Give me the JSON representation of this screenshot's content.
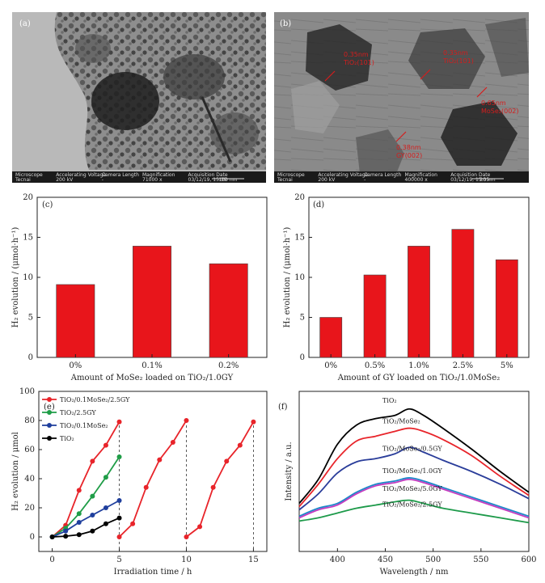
{
  "panels": {
    "a": {
      "label": "(a)"
    },
    "b": {
      "label": "(b)"
    },
    "c": {
      "label": "(c)"
    },
    "d": {
      "label": "(d)"
    },
    "e": {
      "label": "(e)"
    },
    "f": {
      "label": "(f)"
    }
  },
  "tem": {
    "a": {
      "bar_header": [
        "Microscope",
        "Accelerating Voltage",
        "Camera Length",
        "Magnification",
        "Acquisition Date"
      ],
      "bar_values": [
        "Tecnai",
        "200 kV",
        "-",
        "71000 x",
        "03/12/19, 15:35"
      ],
      "scale": "100 nm"
    },
    "b": {
      "bar_header": [
        "Microscope",
        "Accelerating Voltage",
        "Camera Length",
        "Magnification",
        "Acquisition Date"
      ],
      "bar_values": [
        "Tecnai",
        "200 kV",
        "-",
        "400000 x",
        "03/12/19, 15:35"
      ],
      "scale": "20 nm",
      "annotations": [
        {
          "line1": "0.35nm",
          "line2": "TiO₂(101)"
        },
        {
          "line1": "0.35nm",
          "line2": "TiO₂(101)"
        },
        {
          "line1": "0.65nm",
          "line2": "MoSe₂(002)"
        },
        {
          "line1": "0.38nm",
          "line2": "GY(002)"
        }
      ]
    }
  },
  "chart_data": [
    {
      "id": "c",
      "type": "bar",
      "categories": [
        "0%",
        "0.1%",
        "0.2%"
      ],
      "values": [
        9.1,
        13.9,
        11.7
      ],
      "xlabel": "Amount of MoSe₂ loaded on TiO₂/1.0GY",
      "ylabel": "H₂ evolution / (μmol·h⁻¹)",
      "ylim": [
        0,
        20
      ],
      "yticks": [
        0,
        5,
        10,
        15,
        20
      ],
      "color": "#e8151b"
    },
    {
      "id": "d",
      "type": "bar",
      "categories": [
        "0%",
        "0.5%",
        "1.0%",
        "2.5%",
        "5%"
      ],
      "values": [
        5.0,
        10.3,
        13.9,
        16.0,
        12.2
      ],
      "xlabel": "Amount of GY loaded on TiO₂/1.0MoSe₂",
      "ylabel": "H₂ evolution / (μmol·h⁻¹)",
      "ylim": [
        0,
        20
      ],
      "yticks": [
        0,
        5,
        10,
        15,
        20
      ],
      "color": "#e8151b"
    },
    {
      "id": "e",
      "type": "line",
      "xlabel": "Irradiation time / h",
      "ylabel": "H₂ evolution / μmol",
      "xlim": [
        -1,
        16
      ],
      "ylim": [
        -10,
        100
      ],
      "xticks": [
        0,
        5,
        10,
        15
      ],
      "yticks": [
        0,
        20,
        40,
        60,
        80,
        100
      ],
      "cycle_lines": [
        5,
        10,
        15
      ],
      "series": [
        {
          "name": "TiO₂/0.1MoSe₂/2.5GY",
          "color": "#e8242a",
          "segments": [
            [
              [
                0,
                0
              ],
              [
                1,
                8
              ],
              [
                2,
                32
              ],
              [
                3,
                52
              ],
              [
                4,
                63
              ],
              [
                5,
                79
              ]
            ],
            [
              [
                5,
                0
              ],
              [
                6,
                9
              ],
              [
                7,
                34
              ],
              [
                8,
                53
              ],
              [
                9,
                65
              ],
              [
                10,
                80
              ]
            ],
            [
              [
                10,
                0
              ],
              [
                11,
                7
              ],
              [
                12,
                34
              ],
              [
                13,
                52
              ],
              [
                14,
                63
              ],
              [
                15,
                79
              ]
            ]
          ]
        },
        {
          "name": "TiO₂/2.5GY",
          "color": "#1f9d47",
          "segments": [
            [
              [
                0,
                0
              ],
              [
                1,
                6
              ],
              [
                2,
                16
              ],
              [
                3,
                28
              ],
              [
                4,
                41
              ],
              [
                5,
                55
              ]
            ]
          ]
        },
        {
          "name": "TiO₂/0.1MoSe₂",
          "color": "#1f3f9d",
          "segments": [
            [
              [
                0,
                0
              ],
              [
                1,
                4
              ],
              [
                2,
                10
              ],
              [
                3,
                15
              ],
              [
                4,
                20
              ],
              [
                5,
                25
              ]
            ]
          ]
        },
        {
          "name": "TiO₂",
          "color": "#000000",
          "segments": [
            [
              [
                0,
                0
              ],
              [
                1,
                0.5
              ],
              [
                2,
                1.5
              ],
              [
                3,
                4
              ],
              [
                4,
                9
              ],
              [
                5,
                13
              ]
            ]
          ]
        }
      ]
    },
    {
      "id": "f",
      "type": "line",
      "xlabel": "Wavelength / nm",
      "ylabel": "Intensity / a.u.",
      "xlim": [
        360,
        600
      ],
      "ylim": [
        0,
        1
      ],
      "xticks": [
        400,
        450,
        500,
        550,
        600
      ],
      "series": [
        {
          "name": "TiO₂",
          "color": "#000000",
          "points": [
            [
              360,
              0.3
            ],
            [
              380,
              0.45
            ],
            [
              400,
              0.67
            ],
            [
              420,
              0.79
            ],
            [
              440,
              0.83
            ],
            [
              460,
              0.85
            ],
            [
              475,
              0.89
            ],
            [
              490,
              0.85
            ],
            [
              510,
              0.77
            ],
            [
              540,
              0.64
            ],
            [
              570,
              0.5
            ],
            [
              600,
              0.37
            ]
          ]
        },
        {
          "name": "TiO₂/MoSe₂",
          "color": "#e8242a",
          "points": [
            [
              360,
              0.28
            ],
            [
              380,
              0.42
            ],
            [
              400,
              0.58
            ],
            [
              420,
              0.69
            ],
            [
              440,
              0.72
            ],
            [
              460,
              0.75
            ],
            [
              475,
              0.77
            ],
            [
              490,
              0.75
            ],
            [
              510,
              0.7
            ],
            [
              540,
              0.6
            ],
            [
              570,
              0.47
            ],
            [
              600,
              0.35
            ]
          ]
        },
        {
          "name": "TiO₂/MoSe₂/0.5GY",
          "color": "#2a3d9a",
          "points": [
            [
              360,
              0.26
            ],
            [
              380,
              0.36
            ],
            [
              400,
              0.49
            ],
            [
              420,
              0.56
            ],
            [
              440,
              0.58
            ],
            [
              460,
              0.61
            ],
            [
              475,
              0.65
            ],
            [
              490,
              0.62
            ],
            [
              510,
              0.57
            ],
            [
              540,
              0.5
            ],
            [
              570,
              0.42
            ],
            [
              600,
              0.33
            ]
          ]
        },
        {
          "name": "TiO₂/MoSe₂/1.0GY",
          "color": "#1c87c9",
          "points": [
            [
              360,
              0.22
            ],
            [
              380,
              0.27
            ],
            [
              400,
              0.3
            ],
            [
              420,
              0.37
            ],
            [
              440,
              0.42
            ],
            [
              460,
              0.44
            ],
            [
              475,
              0.46
            ],
            [
              490,
              0.44
            ],
            [
              510,
              0.4
            ],
            [
              540,
              0.34
            ],
            [
              570,
              0.28
            ],
            [
              600,
              0.22
            ]
          ]
        },
        {
          "name": "TiO₂/MoSe₂/5.0GY",
          "color": "#c43bbf",
          "points": [
            [
              360,
              0.21
            ],
            [
              380,
              0.26
            ],
            [
              400,
              0.29
            ],
            [
              420,
              0.36
            ],
            [
              440,
              0.41
            ],
            [
              460,
              0.43
            ],
            [
              475,
              0.45
            ],
            [
              490,
              0.43
            ],
            [
              510,
              0.39
            ],
            [
              540,
              0.33
            ],
            [
              570,
              0.27
            ],
            [
              600,
              0.21
            ]
          ]
        },
        {
          "name": "TiO₂/MoSe₂/2.5GY",
          "color": "#1d9a4a",
          "points": [
            [
              360,
              0.19
            ],
            [
              380,
              0.21
            ],
            [
              400,
              0.24
            ],
            [
              420,
              0.27
            ],
            [
              440,
              0.29
            ],
            [
              460,
              0.31
            ],
            [
              475,
              0.32
            ],
            [
              490,
              0.3
            ],
            [
              510,
              0.27
            ],
            [
              540,
              0.24
            ],
            [
              570,
              0.21
            ],
            [
              600,
              0.18
            ]
          ]
        }
      ],
      "label_positions_words": "labels placed inline near each curve"
    }
  ]
}
